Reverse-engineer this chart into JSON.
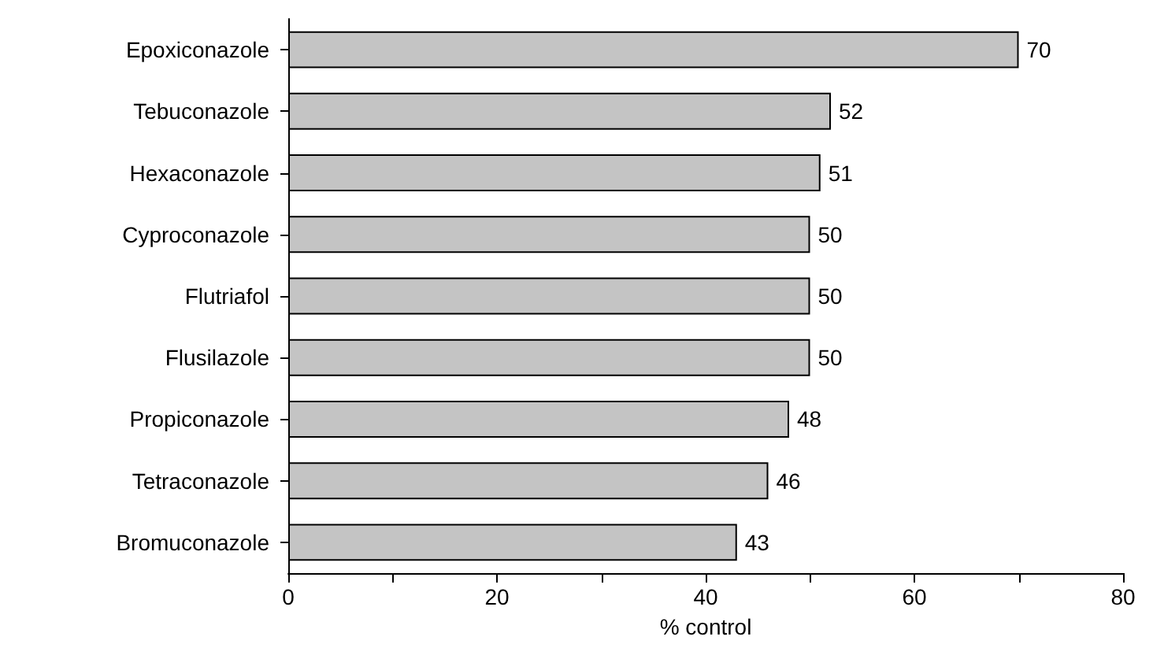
{
  "chart_data": {
    "type": "bar",
    "orientation": "horizontal",
    "categories": [
      "Epoxiconazole",
      "Tebuconazole",
      "Hexaconazole",
      "Cyproconazole",
      "Flutriafol",
      "Flusilazole",
      "Propiconazole",
      "Tetraconazole",
      "Bromuconazole"
    ],
    "values": [
      70,
      52,
      51,
      50,
      50,
      50,
      48,
      46,
      43
    ],
    "color": "#c4c4c4",
    "xlabel": "% control",
    "xlim": [
      0,
      80
    ],
    "xticks": [
      0,
      {
        "value": 10,
        "label": null
      },
      20,
      {
        "value": 30,
        "label": null
      },
      40,
      {
        "value": 50,
        "label": null
      },
      60,
      {
        "value": 70,
        "label": null
      },
      80
    ],
    "data_labels": true,
    "grid": false
  }
}
